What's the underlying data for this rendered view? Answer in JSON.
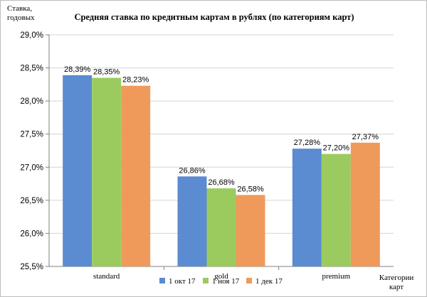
{
  "chart_data": {
    "type": "bar",
    "title": "Средняя  ставка по кредитным картам  в рублях  (по категориям  карт)",
    "ylabel_lines": [
      "Ставка,",
      "годовых"
    ],
    "xlabel_lines": [
      "Категории",
      "карт"
    ],
    "ylim": [
      25.5,
      29.0
    ],
    "yticks": [
      25.5,
      26.0,
      26.5,
      27.0,
      27.5,
      28.0,
      28.5,
      29.0
    ],
    "ytick_labels": [
      "25,5%",
      "26,0%",
      "26,5%",
      "27,0%",
      "27,5%",
      "28,0%",
      "28,5%",
      "29,0%"
    ],
    "grid": "horizontal",
    "legend_position": "bottom",
    "categories": [
      "standard",
      "gold",
      "premium"
    ],
    "series": [
      {
        "name": "1 окт 17",
        "color": "#5b8bd0",
        "values": [
          28.39,
          26.86,
          27.28
        ],
        "labels": [
          "28,39%",
          "26,86%",
          "27,28%"
        ]
      },
      {
        "name": "1 ноя 17",
        "color": "#9bcb5f",
        "values": [
          28.35,
          26.68,
          27.2
        ],
        "labels": [
          "28,35%",
          "26,68%",
          "27,20%"
        ]
      },
      {
        "name": "1 дек 17",
        "color": "#ef9a5b",
        "values": [
          28.23,
          26.58,
          27.37
        ],
        "labels": [
          "28,23%",
          "26,58%",
          "27,37%"
        ]
      }
    ]
  }
}
